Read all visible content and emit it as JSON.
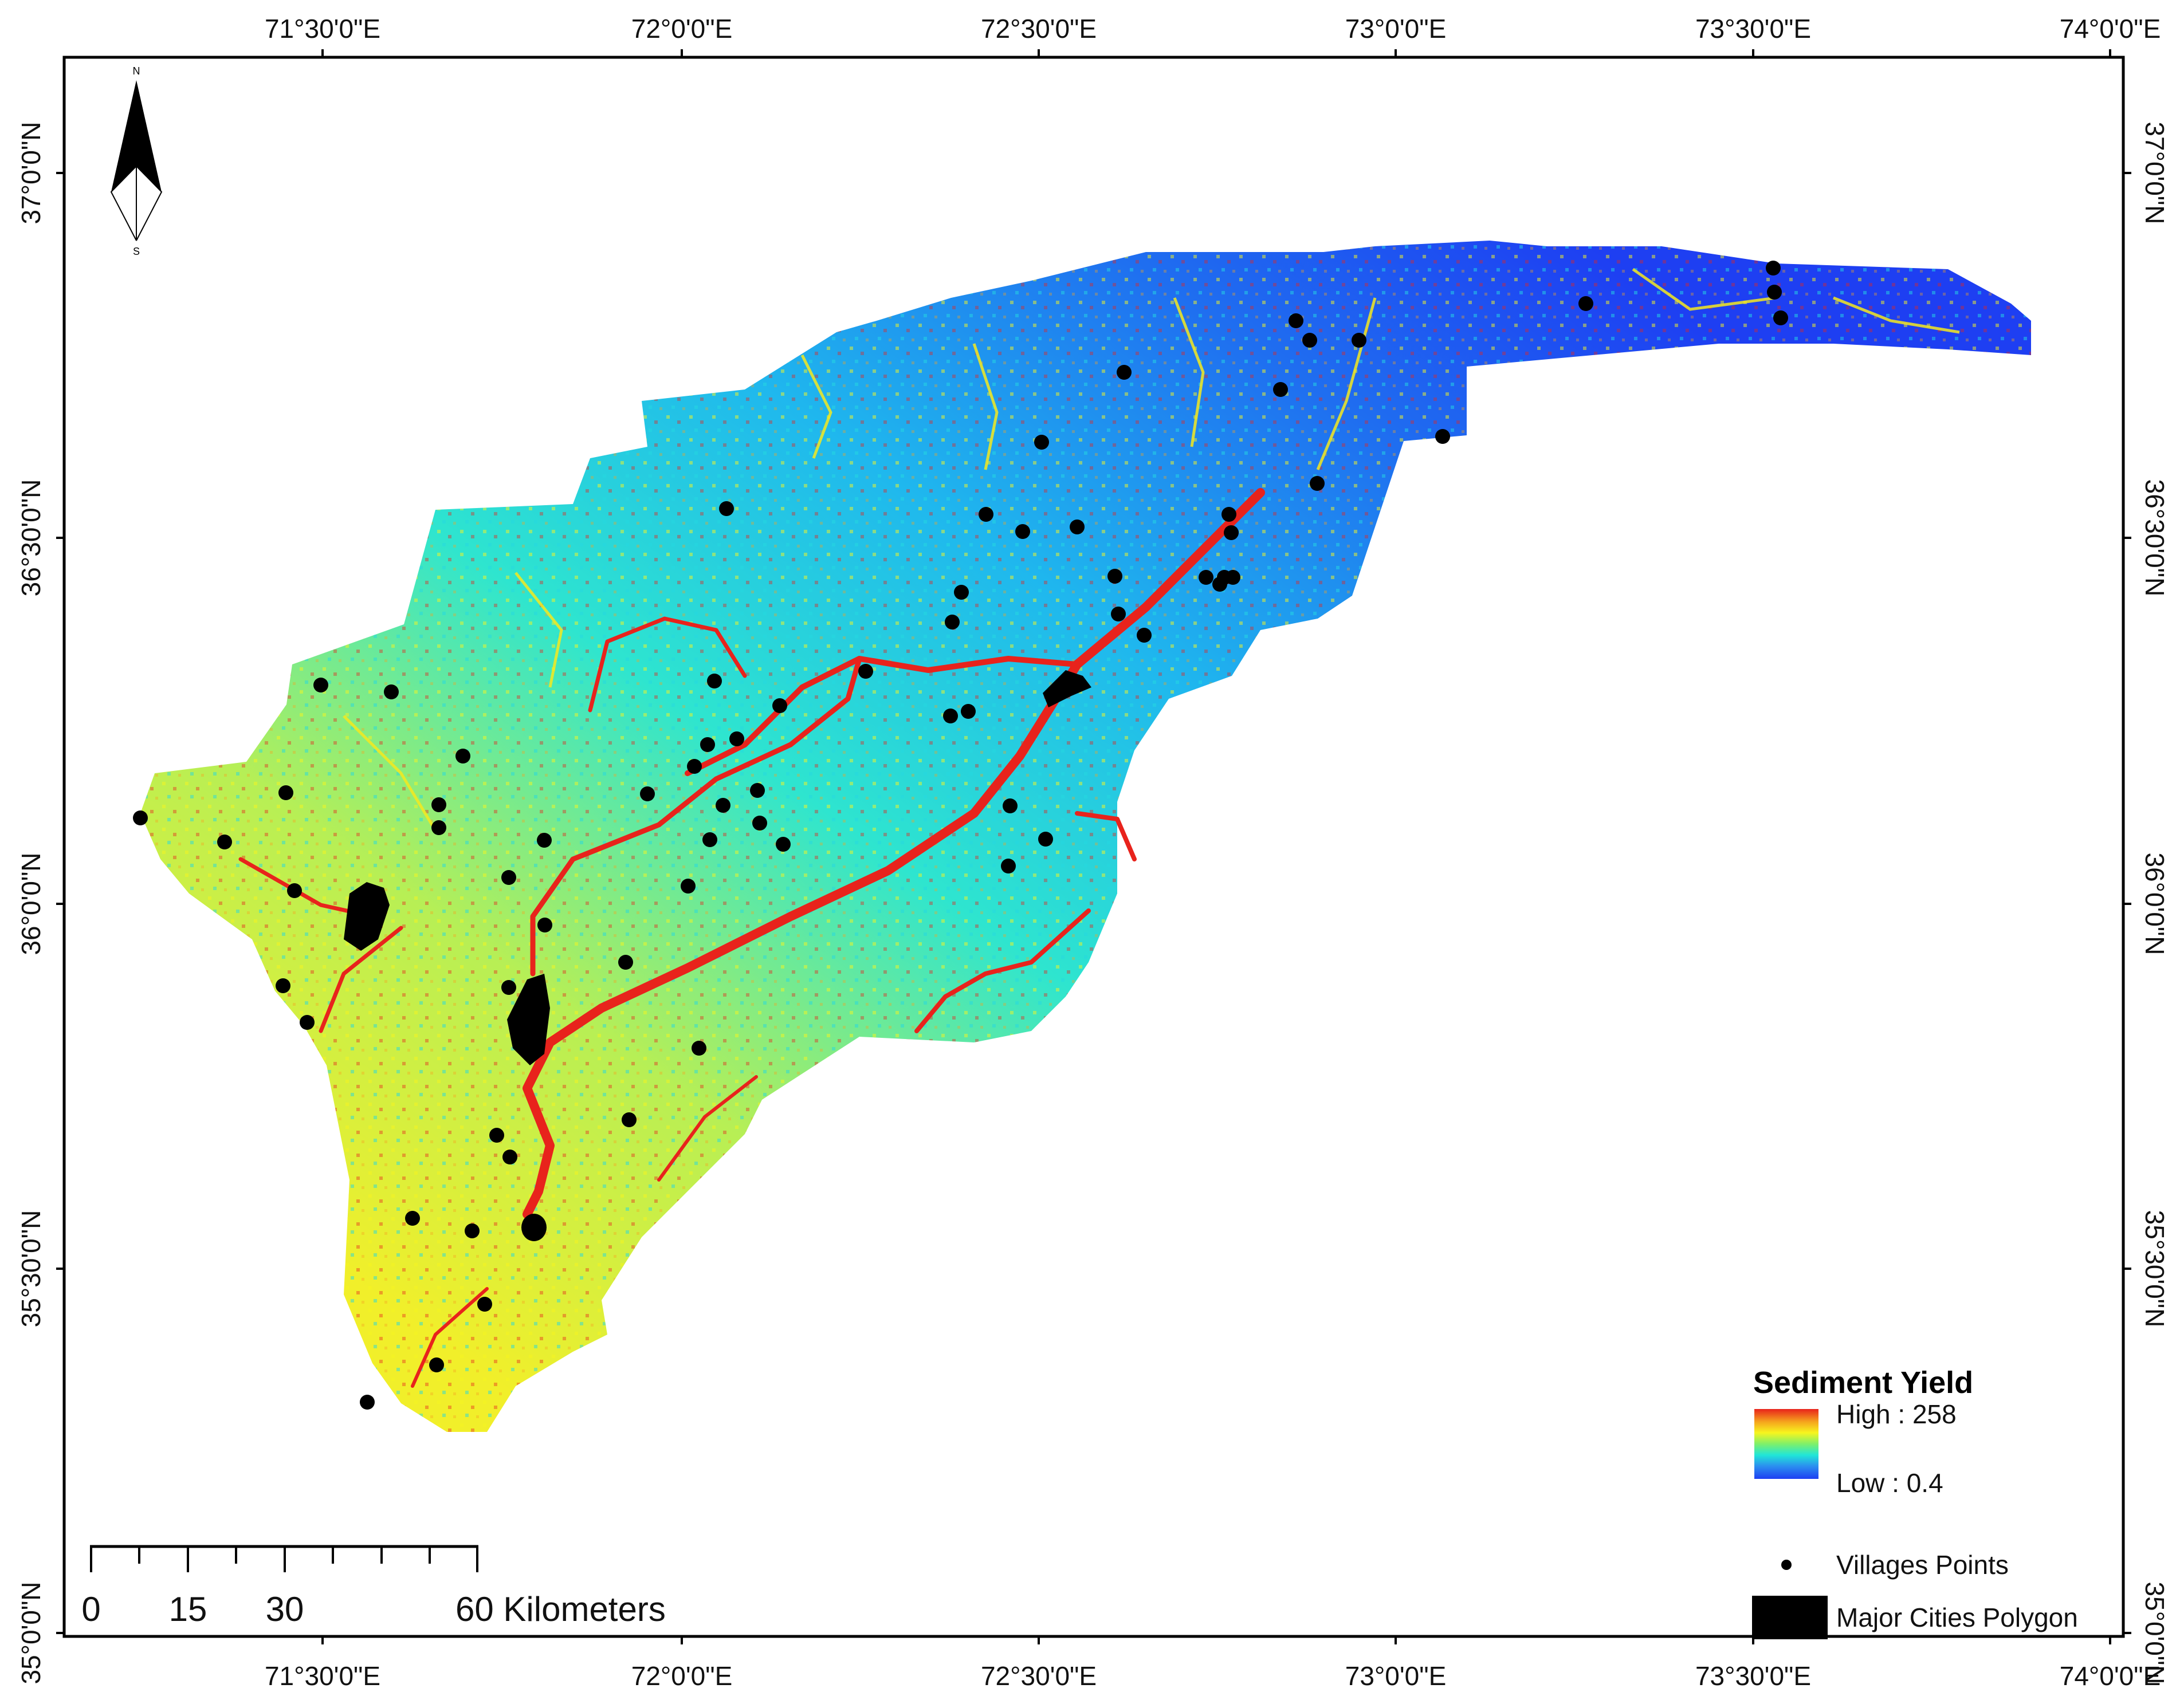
{
  "map": {
    "axes": {
      "longitude_labels": [
        "71°30'0\"E",
        "72°0'0\"E",
        "72°30'0\"E",
        "73°0'0\"E",
        "73°30'0\"E",
        "74°0'0\"E"
      ],
      "latitude_labels": [
        "37°0'0\"N",
        "36°30'0\"N",
        "36°0'0\"N",
        "35°30'0\"N",
        "35°0'0\"N"
      ],
      "lon_range": [
        71.25,
        74.0
      ],
      "lat_range": [
        34.99,
        37.16
      ]
    },
    "north_arrow": {
      "icon": "north-arrow-icon",
      "n_label": "N",
      "s_label": "S"
    },
    "legend": {
      "title": "Sediment Yield",
      "high_label": "High : 258",
      "low_label": "Low : 0.4",
      "gradient_colors": [
        "#e8231c",
        "#f5a31d",
        "#f7f51e",
        "#7ef06a",
        "#20e6d8",
        "#2b8ef0",
        "#1e3ff2"
      ],
      "villages_label": "Villages Points",
      "cities_label": "Major Cities Polygon"
    },
    "scale_bar": {
      "labels": [
        "0",
        "15",
        "30",
        "60 Kilometers"
      ]
    },
    "colors": {
      "frame": "#000000",
      "low": "#1e3ff2",
      "mid": "#20e6d8",
      "high": "#e8231c",
      "point": "#000000"
    }
  }
}
